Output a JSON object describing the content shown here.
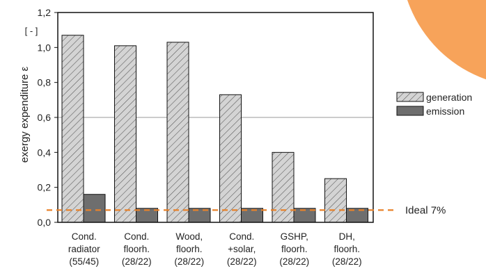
{
  "chart_data": {
    "type": "bar",
    "ylabel": "exergy expenditure ε",
    "unit_label": "[ - ]",
    "ylim": [
      0,
      1.2
    ],
    "yticks": [
      "0,0",
      "0,2",
      "0,4",
      "0,6",
      "0,8",
      "1,0",
      "1,2"
    ],
    "ytick_values": [
      0,
      0.2,
      0.4,
      0.6,
      0.8,
      1.0,
      1.2
    ],
    "grid": "single horizontal line at 0,6",
    "categories": [
      [
        "Cond.",
        "radiator",
        "(55/45)"
      ],
      [
        "Cond.",
        "floorh.",
        "(28/22)"
      ],
      [
        "Wood,",
        "floorh.",
        "(28/22)"
      ],
      [
        "Cond.",
        "+solar,",
        "(28/22)"
      ],
      [
        "GSHP,",
        "floorh.",
        "(28/22)"
      ],
      [
        "DH,",
        "floorh.",
        "(28/22)"
      ]
    ],
    "series": [
      {
        "name": "generation",
        "values": [
          1.07,
          1.01,
          1.03,
          0.73,
          0.4,
          0.25
        ],
        "color": "#d4d4d4",
        "pattern": "diagonal-hatch"
      },
      {
        "name": "emission",
        "values": [
          0.16,
          0.08,
          0.08,
          0.08,
          0.08,
          0.08
        ],
        "color": "#6e6e6e"
      }
    ],
    "reference_line": {
      "label": "Ideal 7%",
      "value": 0.07,
      "color": "#e8822a"
    },
    "legend_position": "right",
    "decoration": {
      "color": "#f7a35a"
    }
  }
}
